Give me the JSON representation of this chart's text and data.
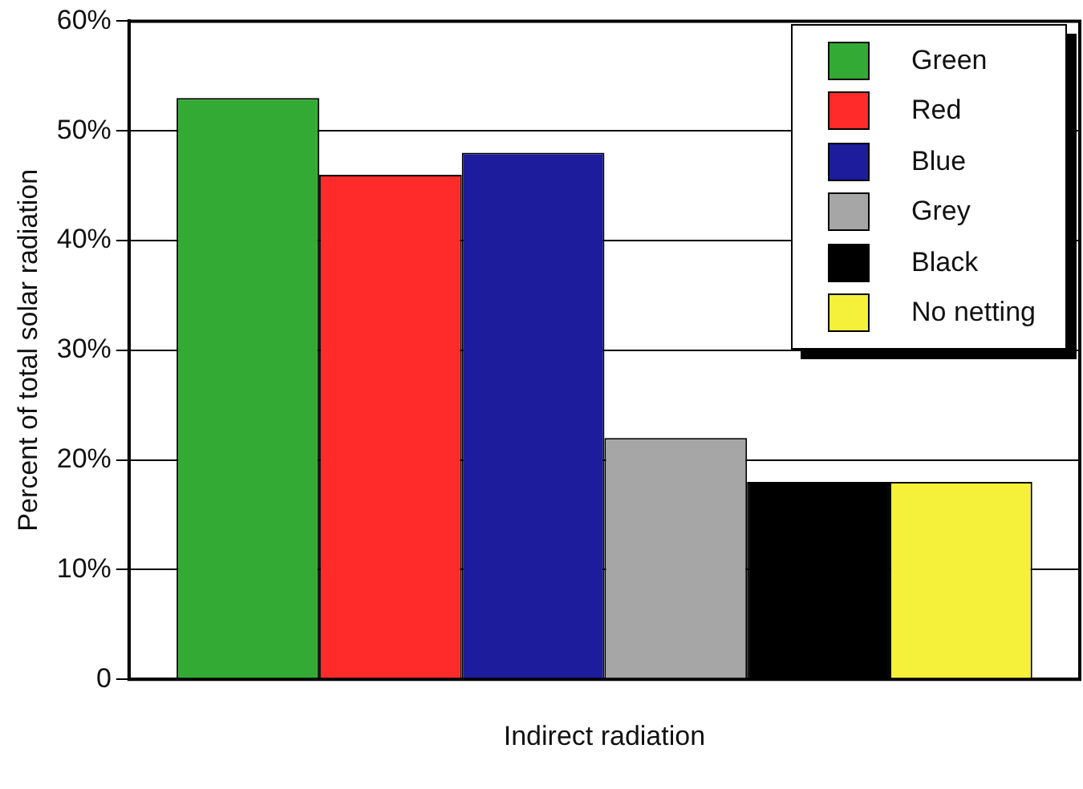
{
  "chart_data": {
    "type": "bar",
    "xlabel": null,
    "ylabel": "Percent of total solar radiation",
    "categories": [
      "Indirect radiation"
    ],
    "series": [
      {
        "name": "Green",
        "color": "#33aa33",
        "values": [
          53
        ]
      },
      {
        "name": "Red",
        "color": "#ff2a2a",
        "values": [
          46
        ]
      },
      {
        "name": "Blue",
        "color": "#1c1c9c",
        "values": [
          48
        ]
      },
      {
        "name": "Grey",
        "color": "#a6a6a6",
        "values": [
          22
        ]
      },
      {
        "name": "Black",
        "color": "#000000",
        "values": [
          18
        ]
      },
      {
        "name": "No netting",
        "color": "#f5f03a",
        "values": [
          18
        ]
      }
    ],
    "ylim": [
      0,
      60
    ],
    "yticks": [
      0,
      {
        "value": 10,
        "label": "10%"
      },
      {
        "value": 20,
        "label": "20%"
      },
      {
        "value": 30,
        "label": "30%"
      },
      {
        "value": 40,
        "label": "40%"
      },
      {
        "value": 50,
        "label": "50%"
      },
      {
        "value": 60,
        "label": "60%"
      }
    ],
    "grid": "y",
    "legend": "top right"
  }
}
